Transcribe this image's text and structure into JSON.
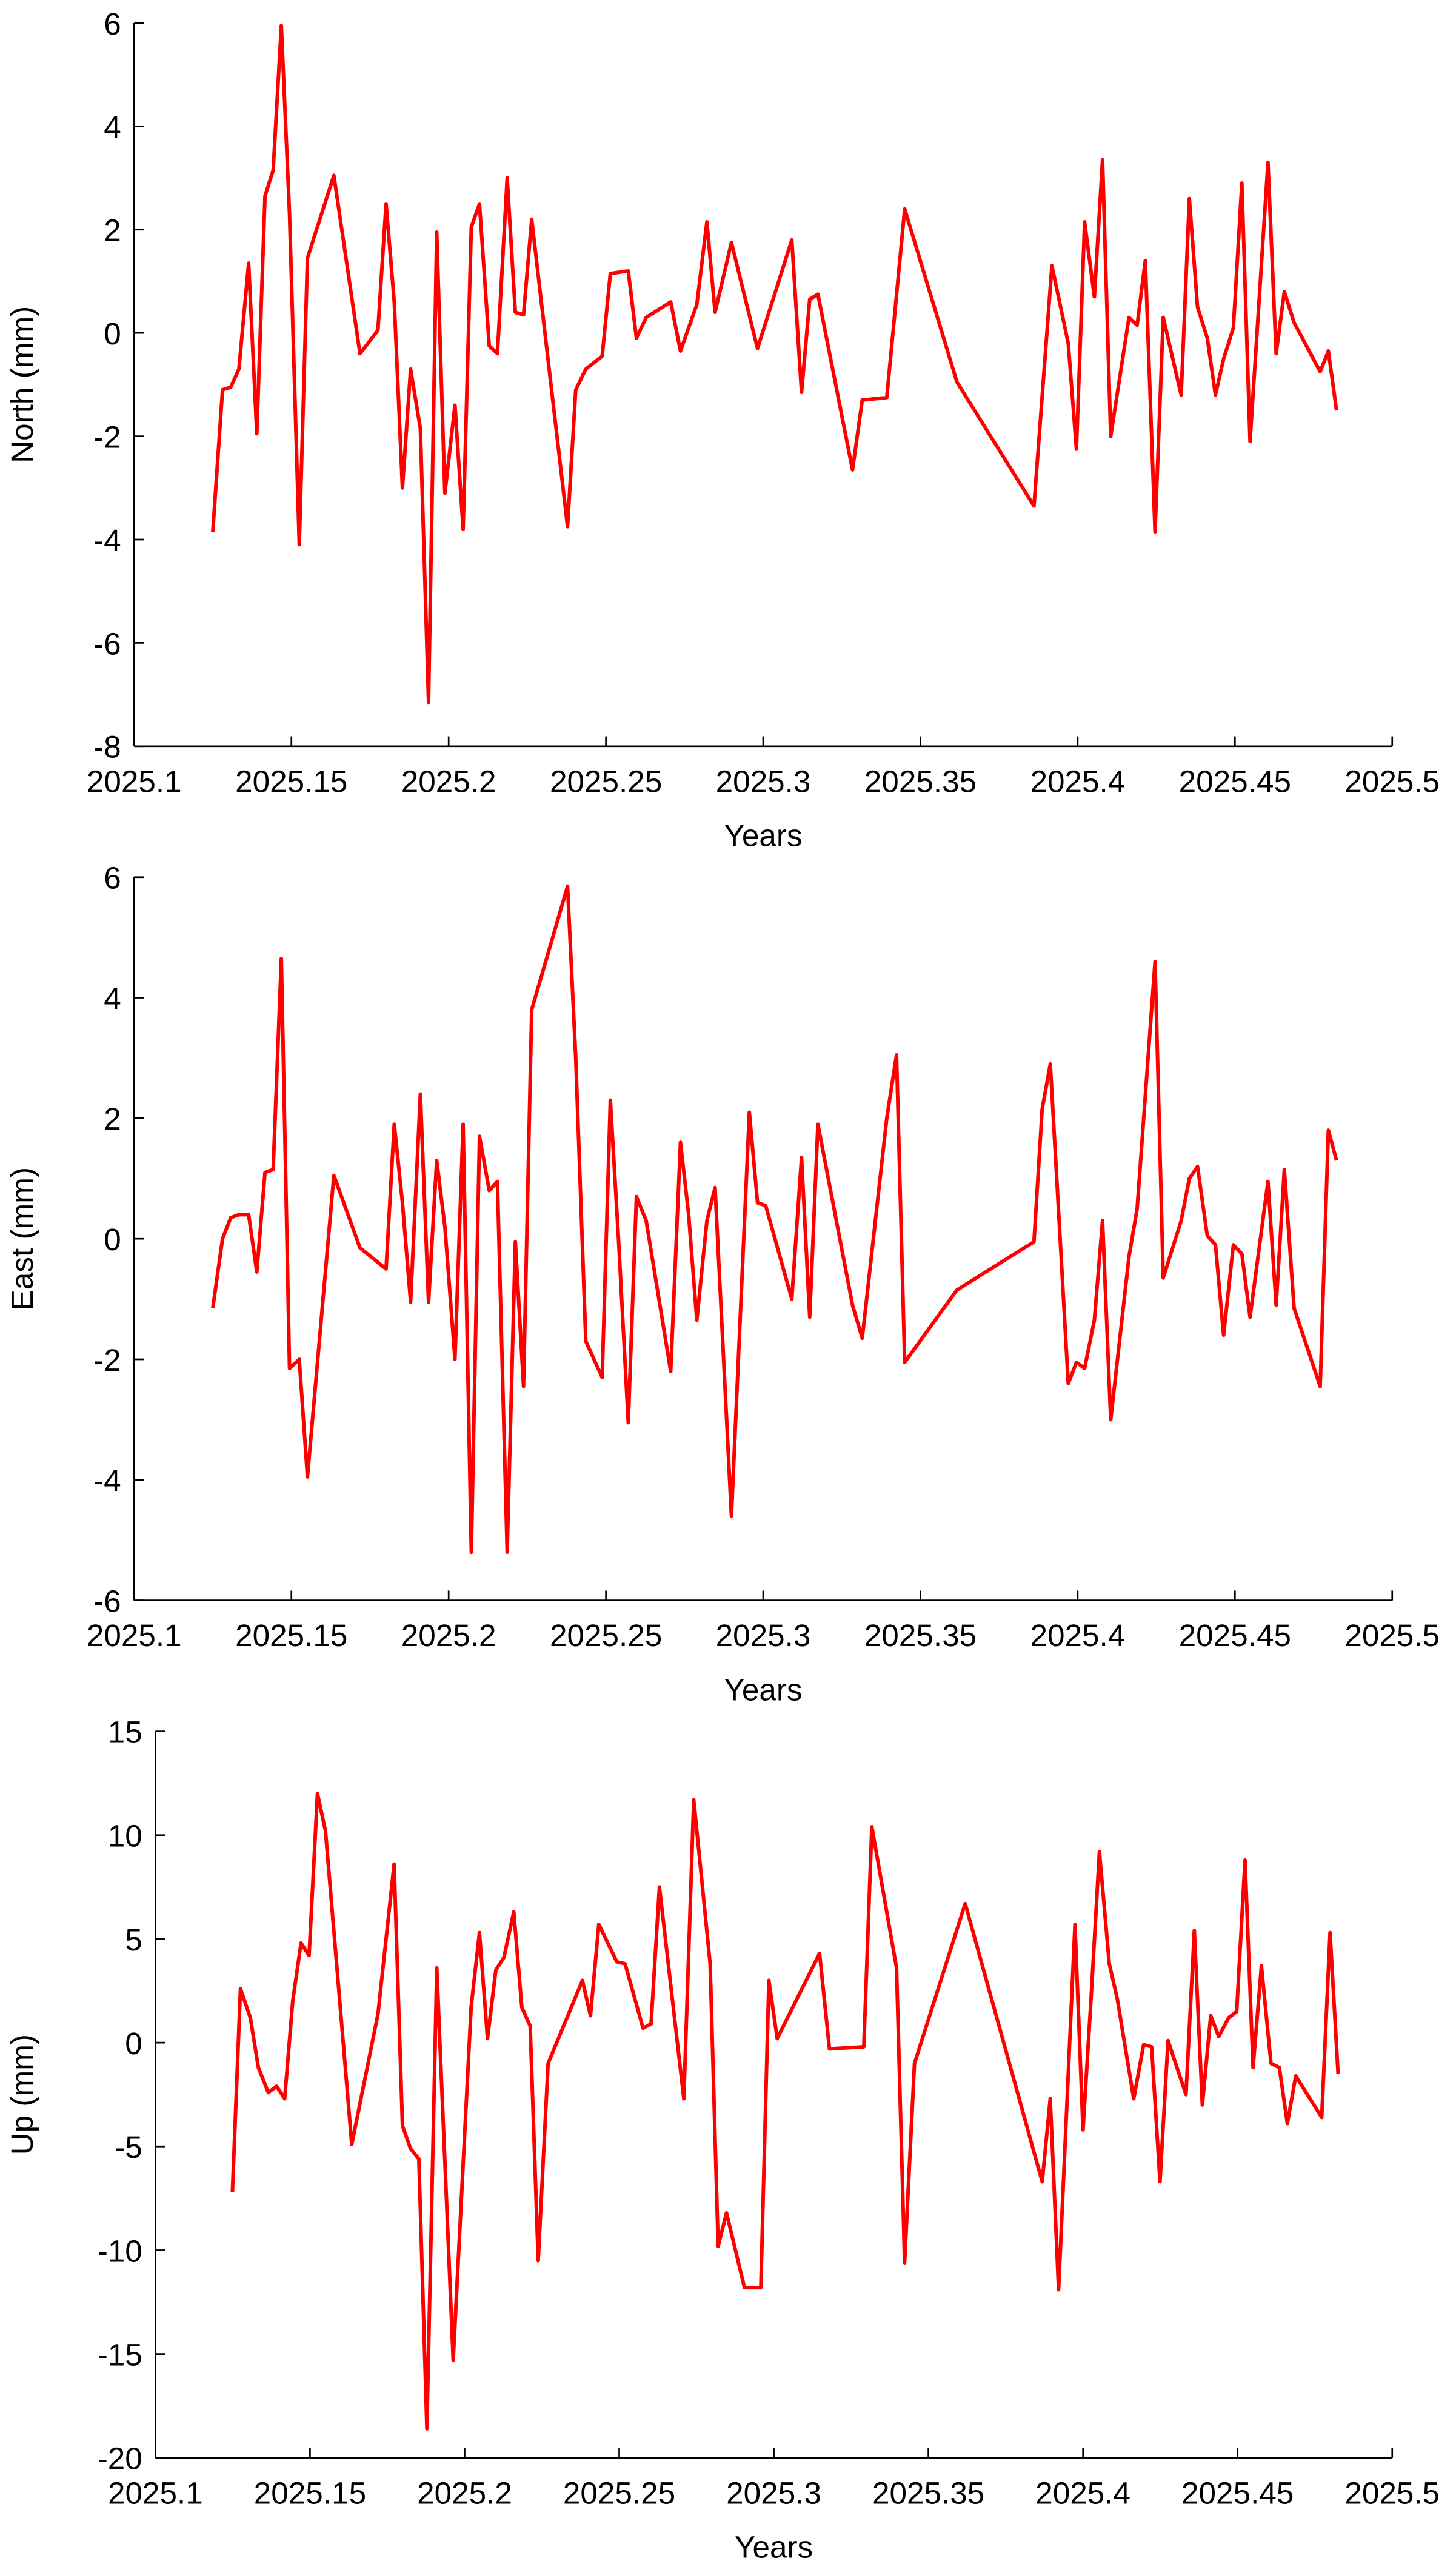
{
  "chart_data": [
    {
      "type": "line",
      "xlabel": "Years",
      "ylabel": "North (mm)",
      "color": "#ff0000",
      "xlim": [
        2025.1,
        2025.5
      ],
      "xticks": [
        2025.1,
        2025.15,
        2025.2,
        2025.25,
        2025.3,
        2025.35,
        2025.4,
        2025.45,
        2025.5
      ],
      "ylim": [
        -8,
        6
      ],
      "yticks": [
        -8,
        -6,
        -4,
        -2,
        0,
        2,
        4,
        6
      ],
      "x": [
        2025.125,
        2025.1281,
        2025.1307,
        2025.1333,
        2025.1364,
        2025.139,
        2025.1416,
        2025.1442,
        2025.1468,
        2025.1494,
        2025.1525,
        2025.1551,
        2025.1635,
        2025.1718,
        2025.1775,
        2025.1801,
        2025.1827,
        2025.1853,
        2025.1879,
        2025.191,
        2025.1936,
        2025.1962,
        2025.1988,
        2025.202,
        2025.2046,
        2025.2072,
        2025.2098,
        2025.2129,
        2025.2155,
        2025.2186,
        2025.2212,
        2025.2238,
        2025.2264,
        2025.2378,
        2025.2404,
        2025.2436,
        2025.2488,
        2025.2514,
        2025.2571,
        2025.2597,
        2025.2628,
        2025.2706,
        2025.2737,
        2025.2789,
        2025.2821,
        2025.2847,
        2025.2899,
        2025.2982,
        2025.3091,
        2025.3122,
        2025.3148,
        2025.3174,
        2025.3284,
        2025.3315,
        2025.3393,
        2025.345,
        2025.3616,
        2025.3861,
        2025.3918,
        2025.397,
        2025.3996,
        2025.4022,
        2025.4053,
        2025.4079,
        2025.4105,
        2025.4163,
        2025.4189,
        2025.4215,
        2025.4246,
        2025.4272,
        2025.4329,
        2025.4355,
        2025.4381,
        2025.4412,
        2025.4438,
        2025.4464,
        2025.4495,
        2025.4522,
        2025.4548,
        2025.4605,
        2025.4631,
        2025.4657,
        2025.4688,
        2025.4771,
        2025.4797,
        2025.4823
      ],
      "values": [
        -3.85,
        -1.1,
        -1.05,
        -0.7,
        1.35,
        -1.95,
        2.65,
        3.15,
        5.95,
        2.3,
        -4.1,
        1.45,
        3.05,
        -0.4,
        0.05,
        2.5,
        0.6,
        -3.0,
        -0.7,
        -1.85,
        -7.15,
        1.95,
        -3.1,
        -1.4,
        -3.8,
        2.05,
        2.5,
        -0.25,
        -0.4,
        3.0,
        0.4,
        0.35,
        2.2,
        -3.75,
        -1.1,
        -0.7,
        -0.45,
        1.15,
        1.2,
        -0.1,
        0.3,
        0.6,
        -0.35,
        0.55,
        2.15,
        0.4,
        1.75,
        -0.3,
        1.8,
        -1.15,
        0.65,
        0.75,
        -2.65,
        -1.3,
        -1.25,
        2.4,
        -0.95,
        -3.35,
        1.3,
        -0.2,
        -2.25,
        2.15,
        0.7,
        3.35,
        -2.0,
        0.3,
        0.15,
        1.4,
        -3.85,
        0.3,
        -1.2,
        2.6,
        0.5,
        -0.1,
        -1.2,
        -0.5,
        0.1,
        2.9,
        -2.1,
        3.3,
        -0.4,
        0.8,
        0.2,
        -0.75,
        -0.35,
        -1.5
      ]
    },
    {
      "type": "line",
      "xlabel": "Years",
      "ylabel": "East (mm)",
      "color": "#ff0000",
      "xlim": [
        2025.1,
        2025.5
      ],
      "xticks": [
        2025.1,
        2025.15,
        2025.2,
        2025.25,
        2025.3,
        2025.35,
        2025.4,
        2025.45,
        2025.5
      ],
      "ylim": [
        -6,
        6
      ],
      "yticks": [
        -6,
        -4,
        -2,
        0,
        2,
        4,
        6
      ],
      "x": [
        2025.125,
        2025.1281,
        2025.1307,
        2025.1333,
        2025.1364,
        2025.139,
        2025.1416,
        2025.1442,
        2025.1468,
        2025.1494,
        2025.1525,
        2025.1551,
        2025.1635,
        2025.1718,
        2025.1801,
        2025.1827,
        2025.1853,
        2025.1879,
        2025.191,
        2025.1936,
        2025.1962,
        2025.1988,
        2025.202,
        2025.2046,
        2025.2072,
        2025.2098,
        2025.2129,
        2025.2155,
        2025.2186,
        2025.2212,
        2025.2238,
        2025.2264,
        2025.2378,
        2025.2404,
        2025.2436,
        2025.2488,
        2025.2514,
        2025.254,
        2025.2571,
        2025.2597,
        2025.2628,
        2025.2706,
        2025.2737,
        2025.2763,
        2025.2789,
        2025.2821,
        2025.2847,
        2025.2899,
        2025.2956,
        2025.2982,
        2025.3008,
        2025.3091,
        2025.3122,
        2025.3148,
        2025.3174,
        2025.3284,
        2025.3315,
        2025.3393,
        2025.3424,
        2025.345,
        2025.3616,
        2025.3861,
        2025.3887,
        2025.3913,
        2025.397,
        2025.3996,
        2025.4022,
        2025.4053,
        2025.4079,
        2025.4105,
        2025.4163,
        2025.4189,
        2025.4246,
        2025.4272,
        2025.4329,
        2025.4355,
        2025.4381,
        2025.4412,
        2025.4438,
        2025.4464,
        2025.4495,
        2025.4522,
        2025.4548,
        2025.4605,
        2025.4631,
        2025.4657,
        2025.4688,
        2025.4771,
        2025.4797,
        2025.4823
      ],
      "values": [
        -1.15,
        0.0,
        0.35,
        0.4,
        0.4,
        -0.55,
        1.1,
        1.15,
        4.65,
        -2.15,
        -2.0,
        -3.95,
        1.05,
        -0.15,
        -0.5,
        1.9,
        0.6,
        -1.05,
        2.4,
        -1.05,
        1.3,
        0.2,
        -2.0,
        1.9,
        -5.2,
        1.7,
        0.8,
        0.95,
        -5.2,
        -0.05,
        -2.45,
        3.8,
        5.85,
        3.0,
        -1.7,
        -2.3,
        2.3,
        0.0,
        -3.05,
        0.7,
        0.3,
        -2.2,
        1.6,
        0.4,
        -1.35,
        0.3,
        0.85,
        -4.6,
        2.1,
        0.6,
        0.55,
        -1.0,
        1.35,
        -1.3,
        1.9,
        -1.1,
        -1.65,
        2.0,
        3.05,
        -2.05,
        -0.85,
        -0.05,
        2.15,
        2.9,
        -2.4,
        -2.05,
        -2.15,
        -1.35,
        0.3,
        -3.0,
        -0.3,
        0.5,
        4.6,
        -0.65,
        0.3,
        1.0,
        1.2,
        0.05,
        -0.1,
        -1.6,
        -0.1,
        -0.25,
        -1.3,
        0.95,
        -1.1,
        1.15,
        -1.15,
        -2.45,
        1.8,
        1.3
      ]
    },
    {
      "type": "line",
      "xlabel": "Years",
      "ylabel": "Up (mm)",
      "color": "#ff0000",
      "xlim": [
        2025.1,
        2025.5
      ],
      "xticks": [
        2025.1,
        2025.15,
        2025.2,
        2025.25,
        2025.3,
        2025.35,
        2025.4,
        2025.45,
        2025.5
      ],
      "ylim": [
        -20,
        15
      ],
      "yticks": [
        -20,
        -15,
        -10,
        -5,
        0,
        5,
        10,
        15
      ],
      "x": [
        2025.1249,
        2025.1275,
        2025.1307,
        2025.1333,
        2025.1365,
        2025.1392,
        2025.1418,
        2025.1444,
        2025.1471,
        2025.1497,
        2025.1524,
        2025.155,
        2025.1635,
        2025.172,
        2025.1772,
        2025.1799,
        2025.1825,
        2025.1852,
        2025.1878,
        2025.191,
        2025.1963,
        2025.2021,
        2025.2048,
        2025.2074,
        2025.2101,
        2025.2127,
        2025.2159,
        2025.2185,
        2025.2212,
        2025.2238,
        2025.227,
        2025.2381,
        2025.2407,
        2025.2434,
        2025.2492,
        2025.2519,
        2025.2577,
        2025.2603,
        2025.263,
        2025.2709,
        2025.2741,
        2025.2794,
        2025.282,
        2025.2847,
        2025.2905,
        2025.2958,
        2025.2984,
        2025.3011,
        2025.3148,
        2025.318,
        2025.3291,
        2025.3317,
        2025.3397,
        2025.3423,
        2025.3455,
        2025.3619,
        2025.3868,
        2025.3894,
        2025.3921,
        2025.3974,
        2025.4,
        2025.4026,
        2025.4053,
        2025.4085,
        2025.4111,
        2025.4164,
        2025.4196,
        2025.4222,
        2025.4249,
        2025.4275,
        2025.4333,
        2025.436,
        2025.4386,
        2025.4413,
        2025.4439,
        2025.4471,
        2025.4497,
        2025.4524,
        2025.455,
        2025.4577,
        2025.4608,
        2025.4635,
        2025.4661,
        2025.4688,
        2025.4772,
        2025.4799,
        2025.4825
      ],
      "values": [
        -7.2,
        2.6,
        1.2,
        -1.2,
        -2.4,
        -2.1,
        -2.7,
        2.0,
        4.8,
        4.2,
        12.0,
        10.2,
        -4.9,
        1.4,
        8.6,
        -4.0,
        -5.1,
        -5.6,
        -18.6,
        3.6,
        -15.3,
        1.7,
        5.3,
        0.2,
        3.5,
        4.1,
        6.3,
        1.7,
        0.8,
        -10.5,
        -1.0,
        3.0,
        1.3,
        5.7,
        3.9,
        3.8,
        0.7,
        0.9,
        7.5,
        -2.7,
        11.7,
        3.8,
        -9.8,
        -8.2,
        -11.8,
        -11.8,
        3.0,
        0.2,
        4.3,
        -0.3,
        -0.2,
        10.4,
        3.6,
        -10.6,
        -1.0,
        6.7,
        -6.7,
        -2.7,
        -11.9,
        5.7,
        -4.2,
        2.1,
        9.2,
        3.8,
        2.1,
        -2.7,
        -0.1,
        -0.2,
        -6.7,
        0.1,
        -2.5,
        5.4,
        -3.0,
        1.3,
        0.3,
        1.2,
        1.5,
        8.8,
        -1.2,
        3.7,
        -1.0,
        -1.2,
        -3.9,
        -1.6,
        -3.6,
        5.3,
        -1.5
      ]
    }
  ]
}
